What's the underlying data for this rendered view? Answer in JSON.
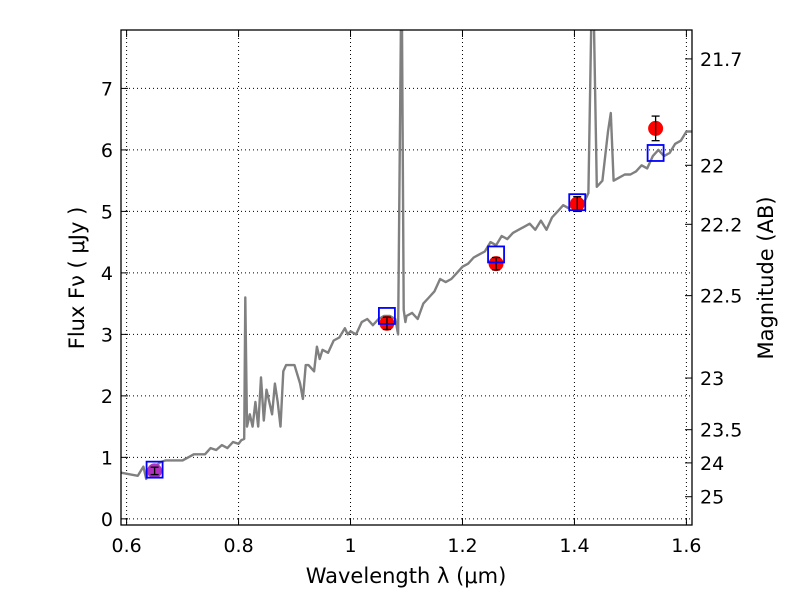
{
  "chart_data": {
    "type": "line",
    "xlabel": "Wavelength  λ (μm)",
    "ylabel": "Flux  Fν  ( μJy )",
    "y2label": "Magnitude (AB)",
    "xlim": [
      0.59,
      1.61
    ],
    "ylim": [
      -0.1,
      7.95
    ],
    "grid": true,
    "x_ticks": [
      0.6,
      0.8,
      1.0,
      1.2,
      1.4,
      1.6
    ],
    "x_tick_labels": [
      "0.6",
      "0.8",
      "1",
      "1.2",
      "1.4",
      "1.6"
    ],
    "y_ticks": [
      0,
      1,
      2,
      3,
      4,
      5,
      6,
      7
    ],
    "y_tick_labels": [
      "0",
      "1",
      "2",
      "3",
      "4",
      "5",
      "6",
      "7"
    ],
    "y2_ticks": [
      {
        "label": "21.7",
        "flux": 7.48
      },
      {
        "label": "22",
        "flux": 5.75
      },
      {
        "label": "22.2",
        "flux": 4.79
      },
      {
        "label": "22.5",
        "flux": 3.63
      },
      {
        "label": "23",
        "flux": 2.29
      },
      {
        "label": "23.5",
        "flux": 1.45
      },
      {
        "label": "24",
        "flux": 0.91
      },
      {
        "label": "25",
        "flux": 0.36
      }
    ],
    "series": [
      {
        "style": "line",
        "color": "#808080",
        "x": [
          0.59,
          0.62,
          0.63,
          0.635,
          0.64,
          0.655,
          0.66,
          0.67,
          0.7,
          0.72,
          0.74,
          0.75,
          0.76,
          0.77,
          0.78,
          0.79,
          0.8,
          0.805,
          0.81,
          0.812,
          0.815,
          0.82,
          0.825,
          0.83,
          0.835,
          0.84,
          0.845,
          0.85,
          0.86,
          0.865,
          0.87,
          0.875,
          0.88,
          0.885,
          0.89,
          0.9,
          0.91,
          0.915,
          0.92,
          0.925,
          0.935,
          0.94,
          0.945,
          0.95,
          0.96,
          0.97,
          0.98,
          0.99,
          0.995,
          1.0,
          1.01,
          1.02,
          1.03,
          1.04,
          1.05,
          1.06,
          1.07,
          1.08,
          1.085,
          1.09,
          1.092,
          1.095,
          1.098,
          1.1,
          1.11,
          1.12,
          1.13,
          1.14,
          1.15,
          1.16,
          1.17,
          1.18,
          1.19,
          1.2,
          1.21,
          1.22,
          1.23,
          1.24,
          1.25,
          1.26,
          1.27,
          1.28,
          1.29,
          1.3,
          1.31,
          1.32,
          1.33,
          1.34,
          1.35,
          1.36,
          1.37,
          1.38,
          1.39,
          1.4,
          1.41,
          1.42,
          1.425,
          1.43,
          1.435,
          1.44,
          1.45,
          1.46,
          1.465,
          1.47,
          1.48,
          1.49,
          1.5,
          1.51,
          1.52,
          1.53,
          1.54,
          1.55,
          1.56,
          1.57,
          1.58,
          1.59,
          1.6,
          1.61
        ],
        "y": [
          0.75,
          0.7,
          0.85,
          0.65,
          0.82,
          0.88,
          0.92,
          0.95,
          0.95,
          1.05,
          1.05,
          1.15,
          1.12,
          1.2,
          1.15,
          1.25,
          1.22,
          1.28,
          1.3,
          3.6,
          1.5,
          1.7,
          1.5,
          1.9,
          1.5,
          2.3,
          1.6,
          2.1,
          1.7,
          2.2,
          1.9,
          1.5,
          2.4,
          2.5,
          2.5,
          2.5,
          2.2,
          1.95,
          2.5,
          2.5,
          2.4,
          2.8,
          2.6,
          2.75,
          2.7,
          2.9,
          2.95,
          3.1,
          3.0,
          3.05,
          3.0,
          3.2,
          3.25,
          3.15,
          3.25,
          3.3,
          3.3,
          3.25,
          3.0,
          8.0,
          8.0,
          3.4,
          3.2,
          3.3,
          3.35,
          3.25,
          3.5,
          3.6,
          3.7,
          3.9,
          3.85,
          3.9,
          4.0,
          4.1,
          4.15,
          4.25,
          4.3,
          4.35,
          4.5,
          4.45,
          4.6,
          4.55,
          4.65,
          4.7,
          4.75,
          4.8,
          4.7,
          4.85,
          4.7,
          4.9,
          5.0,
          5.1,
          5.05,
          5.15,
          5.05,
          5.2,
          5.3,
          8.0,
          8.0,
          5.4,
          5.5,
          6.3,
          6.6,
          5.5,
          5.55,
          5.6,
          5.6,
          5.65,
          5.75,
          5.7,
          5.9,
          6.0,
          5.9,
          5.95,
          6.1,
          6.15,
          6.3,
          6.3
        ]
      },
      {
        "style": "markers",
        "marker": "circle",
        "color": "#ff0000",
        "x": [
          1.065,
          1.26,
          1.405,
          1.545
        ],
        "y": [
          3.18,
          4.15,
          5.12,
          6.35
        ],
        "yerr": [
          0.1,
          0.1,
          0.12,
          0.2
        ]
      },
      {
        "style": "markers",
        "marker": "circle",
        "color": "#b030c0",
        "x": [
          0.65
        ],
        "y": [
          0.78
        ],
        "yerr": [
          0.06
        ]
      },
      {
        "style": "markers",
        "marker": "open-square",
        "color": "#0000ff",
        "x": [
          0.65,
          1.065,
          1.26,
          1.405,
          1.545
        ],
        "y": [
          0.8,
          3.3,
          4.3,
          5.15,
          5.95
        ]
      }
    ]
  }
}
